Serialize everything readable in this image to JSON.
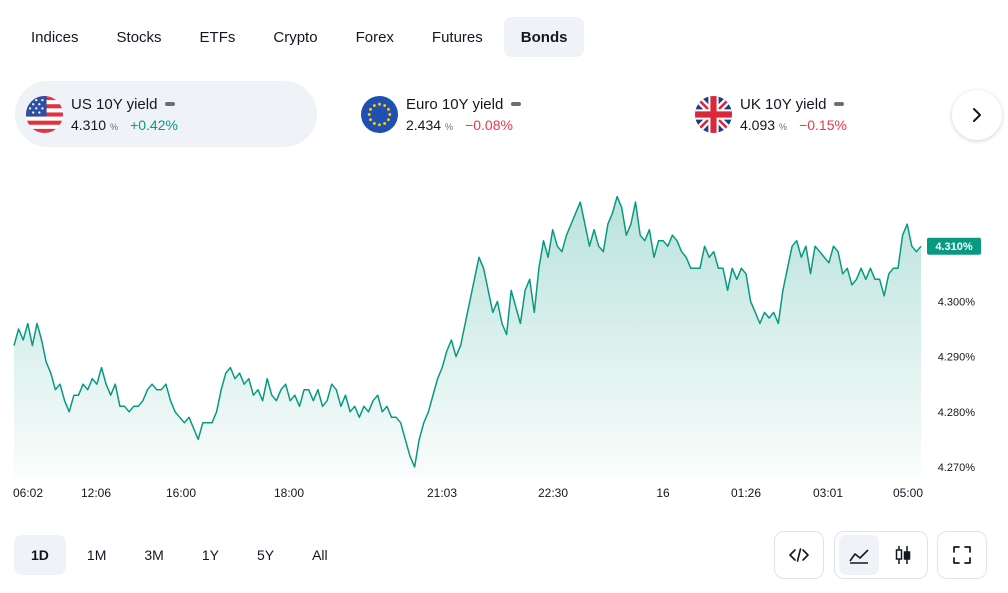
{
  "tabs": [
    {
      "label": "Indices",
      "active": false
    },
    {
      "label": "Stocks",
      "active": false
    },
    {
      "label": "ETFs",
      "active": false
    },
    {
      "label": "Crypto",
      "active": false
    },
    {
      "label": "Forex",
      "active": false
    },
    {
      "label": "Futures",
      "active": false
    },
    {
      "label": "Bonds",
      "active": true
    }
  ],
  "cards": [
    {
      "name": "US 10Y yield",
      "value": "4.310",
      "unit": "%",
      "change": "+0.42%",
      "direction": "up",
      "flag": "us-flag-icon",
      "active": true
    },
    {
      "name": "Euro 10Y yield",
      "value": "2.434",
      "unit": "%",
      "change": "−0.08%",
      "direction": "down",
      "flag": "eu-flag-icon",
      "active": false
    },
    {
      "name": "UK 10Y yield",
      "value": "4.093",
      "unit": "%",
      "change": "−0.15%",
      "direction": "down",
      "flag": "uk-flag-icon",
      "active": false
    }
  ],
  "next_icon": "chevron-right-icon",
  "colors": {
    "up": "#089981",
    "down": "#f23645",
    "line": "#089981",
    "accent_bg": "#eff2f7"
  },
  "chart_data": {
    "type": "area",
    "series": [
      {
        "name": "US 10Y yield",
        "values": [
          4.292,
          4.295,
          4.293,
          4.296,
          4.292,
          4.296,
          4.293,
          4.289,
          4.287,
          4.284,
          4.285,
          4.282,
          4.28,
          4.283,
          4.283,
          4.285,
          4.284,
          4.286,
          4.285,
          4.288,
          4.285,
          4.283,
          4.285,
          4.281,
          4.281,
          4.28,
          4.281,
          4.281,
          4.282,
          4.284,
          4.285,
          4.284,
          4.284,
          4.285,
          4.282,
          4.28,
          4.279,
          4.278,
          4.279,
          4.277,
          4.275,
          4.278,
          4.278,
          4.278,
          4.28,
          4.284,
          4.287,
          4.288,
          4.286,
          4.287,
          4.285,
          4.286,
          4.283,
          4.284,
          4.282,
          4.286,
          4.283,
          4.282,
          4.284,
          4.285,
          4.282,
          4.283,
          4.281,
          4.284,
          4.284,
          4.282,
          4.284,
          4.281,
          4.282,
          4.285,
          4.284,
          4.281,
          4.283,
          4.28,
          4.281,
          4.279,
          4.281,
          4.28,
          4.282,
          4.283,
          4.28,
          4.281,
          4.279,
          4.279,
          4.278,
          4.275,
          4.272,
          4.27,
          4.275,
          4.278,
          4.28,
          4.283,
          4.286,
          4.288,
          4.291,
          4.293,
          4.29,
          4.292,
          4.296,
          4.3,
          4.304,
          4.308,
          4.306,
          4.302,
          4.298,
          4.3,
          4.296,
          4.294,
          4.302,
          4.299,
          4.296,
          4.302,
          4.304,
          4.298,
          4.306,
          4.311,
          4.308,
          4.313,
          4.31,
          4.309,
          4.312,
          4.314,
          4.316,
          4.318,
          4.314,
          4.31,
          4.313,
          4.31,
          4.309,
          4.314,
          4.316,
          4.319,
          4.317,
          4.312,
          4.314,
          4.318,
          4.312,
          4.311,
          4.313,
          4.308,
          4.311,
          4.311,
          4.31,
          4.312,
          4.311,
          4.309,
          4.308,
          4.306,
          4.306,
          4.306,
          4.31,
          4.308,
          4.309,
          4.306,
          4.306,
          4.302,
          4.306,
          4.304,
          4.306,
          4.305,
          4.3,
          4.298,
          4.296,
          4.298,
          4.297,
          4.298,
          4.296,
          4.302,
          4.306,
          4.31,
          4.311,
          4.308,
          4.31,
          4.305,
          4.31,
          4.309,
          4.308,
          4.307,
          4.31,
          4.309,
          4.305,
          4.306,
          4.303,
          4.304,
          4.306,
          4.304,
          4.306,
          4.304,
          4.304,
          4.301,
          4.305,
          4.306,
          4.306,
          4.312,
          4.314,
          4.31,
          4.309,
          4.31
        ],
        "last_label": "4.310%"
      }
    ],
    "x_tick_labels": [
      "06:02",
      "12:06",
      "16:00",
      "18:00",
      "21:03",
      "22:30",
      "16",
      "01:26",
      "03:01",
      "05:00"
    ],
    "y_tick_labels": [
      "4.300%",
      "4.290%",
      "4.280%",
      "4.270%"
    ],
    "ylim": [
      4.268,
      4.322
    ],
    "grid": false,
    "legend": "none"
  },
  "ranges": [
    {
      "label": "1D",
      "active": true
    },
    {
      "label": "1M",
      "active": false
    },
    {
      "label": "3M",
      "active": false
    },
    {
      "label": "1Y",
      "active": false
    },
    {
      "label": "5Y",
      "active": false
    },
    {
      "label": "All",
      "active": false
    }
  ],
  "tools": {
    "embed": "code-icon",
    "area_chart": "area-chart-icon",
    "candles": "candlestick-icon",
    "fullscreen": "fullscreen-icon"
  }
}
